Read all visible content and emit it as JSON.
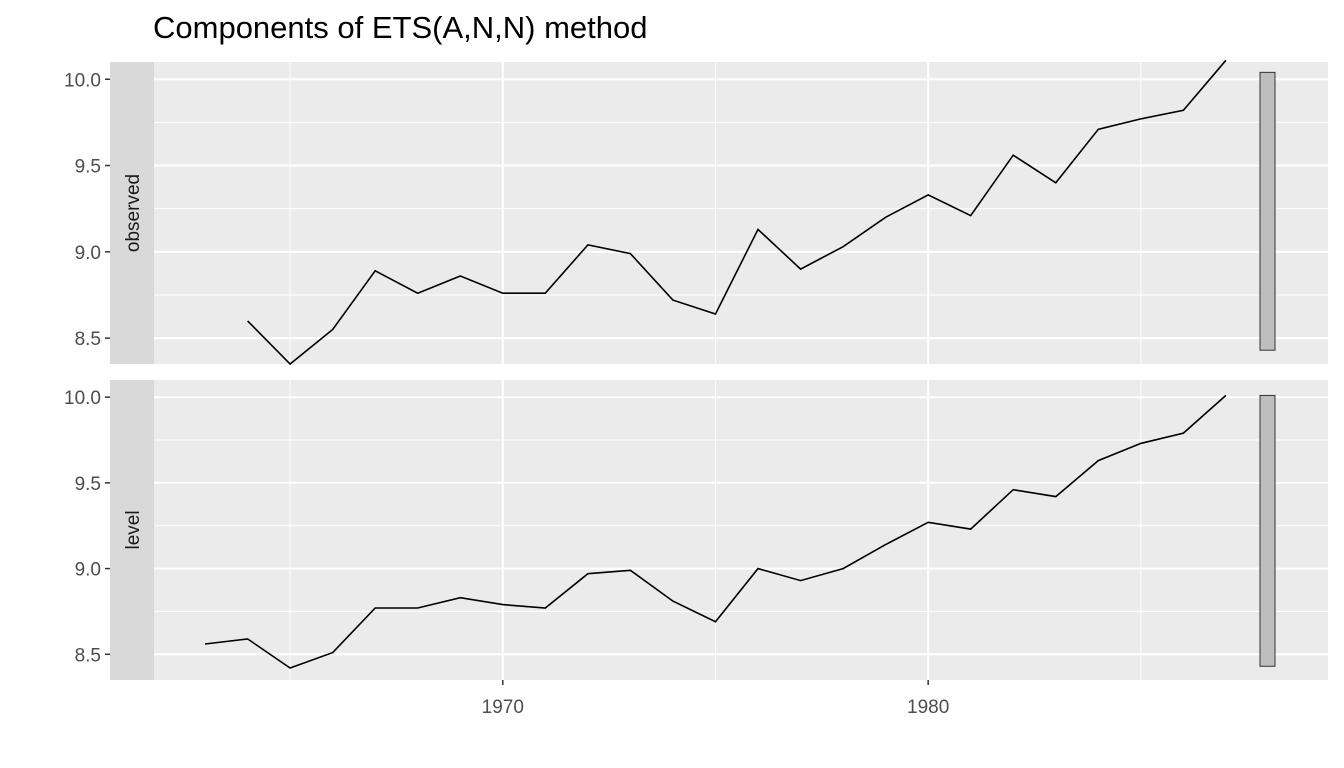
{
  "chart_data": {
    "type": "line",
    "title": "Components of ETS(A,N,N) method",
    "xlabel": "",
    "ylabel": "",
    "x_ticks": [
      1970,
      1980
    ],
    "xlim": [
      1961.8,
      1989.4
    ],
    "grid": true,
    "colors": {
      "panel_bg": "#EBEBEB",
      "strip_bg": "#D9D9D9",
      "grid": "#FFFFFF",
      "line": "#000000",
      "scale_bar": "#BEBEBE",
      "tick_text": "#4D4D4D"
    },
    "panels": [
      {
        "name": "observed",
        "ylim": [
          8.35,
          10.1
        ],
        "y_ticks": [
          8.5,
          9.0,
          9.5,
          10.0
        ],
        "y_tick_labels": [
          "8.5",
          "9.0",
          "9.5",
          "10.0"
        ],
        "scale_bar": [
          8.43,
          10.04
        ],
        "x": [
          1964,
          1965,
          1966,
          1967,
          1968,
          1969,
          1970,
          1971,
          1972,
          1973,
          1974,
          1975,
          1976,
          1977,
          1978,
          1979,
          1980,
          1981,
          1982,
          1983,
          1984,
          1985,
          1986,
          1987
        ],
        "values": [
          8.6,
          8.35,
          8.55,
          8.89,
          8.76,
          8.86,
          8.76,
          8.76,
          9.04,
          8.99,
          8.72,
          8.64,
          9.13,
          8.9,
          9.03,
          9.2,
          9.33,
          9.21,
          9.56,
          9.4,
          9.71,
          9.77,
          9.82,
          10.11
        ]
      },
      {
        "name": "level",
        "ylim": [
          8.35,
          10.1
        ],
        "y_ticks": [
          8.5,
          9.0,
          9.5,
          10.0
        ],
        "y_tick_labels": [
          "8.5",
          "9.0",
          "9.5",
          "10.0"
        ],
        "scale_bar": [
          8.43,
          10.01
        ],
        "x": [
          1963,
          1964,
          1965,
          1966,
          1967,
          1968,
          1969,
          1970,
          1971,
          1972,
          1973,
          1974,
          1975,
          1976,
          1977,
          1978,
          1979,
          1980,
          1981,
          1982,
          1983,
          1984,
          1985,
          1986,
          1987
        ],
        "values": [
          8.56,
          8.59,
          8.42,
          8.51,
          8.77,
          8.77,
          8.83,
          8.79,
          8.77,
          8.97,
          8.99,
          8.81,
          8.69,
          9.0,
          8.93,
          9.0,
          9.14,
          9.27,
          9.23,
          9.46,
          9.42,
          9.63,
          9.73,
          9.79,
          10.01
        ]
      }
    ]
  }
}
